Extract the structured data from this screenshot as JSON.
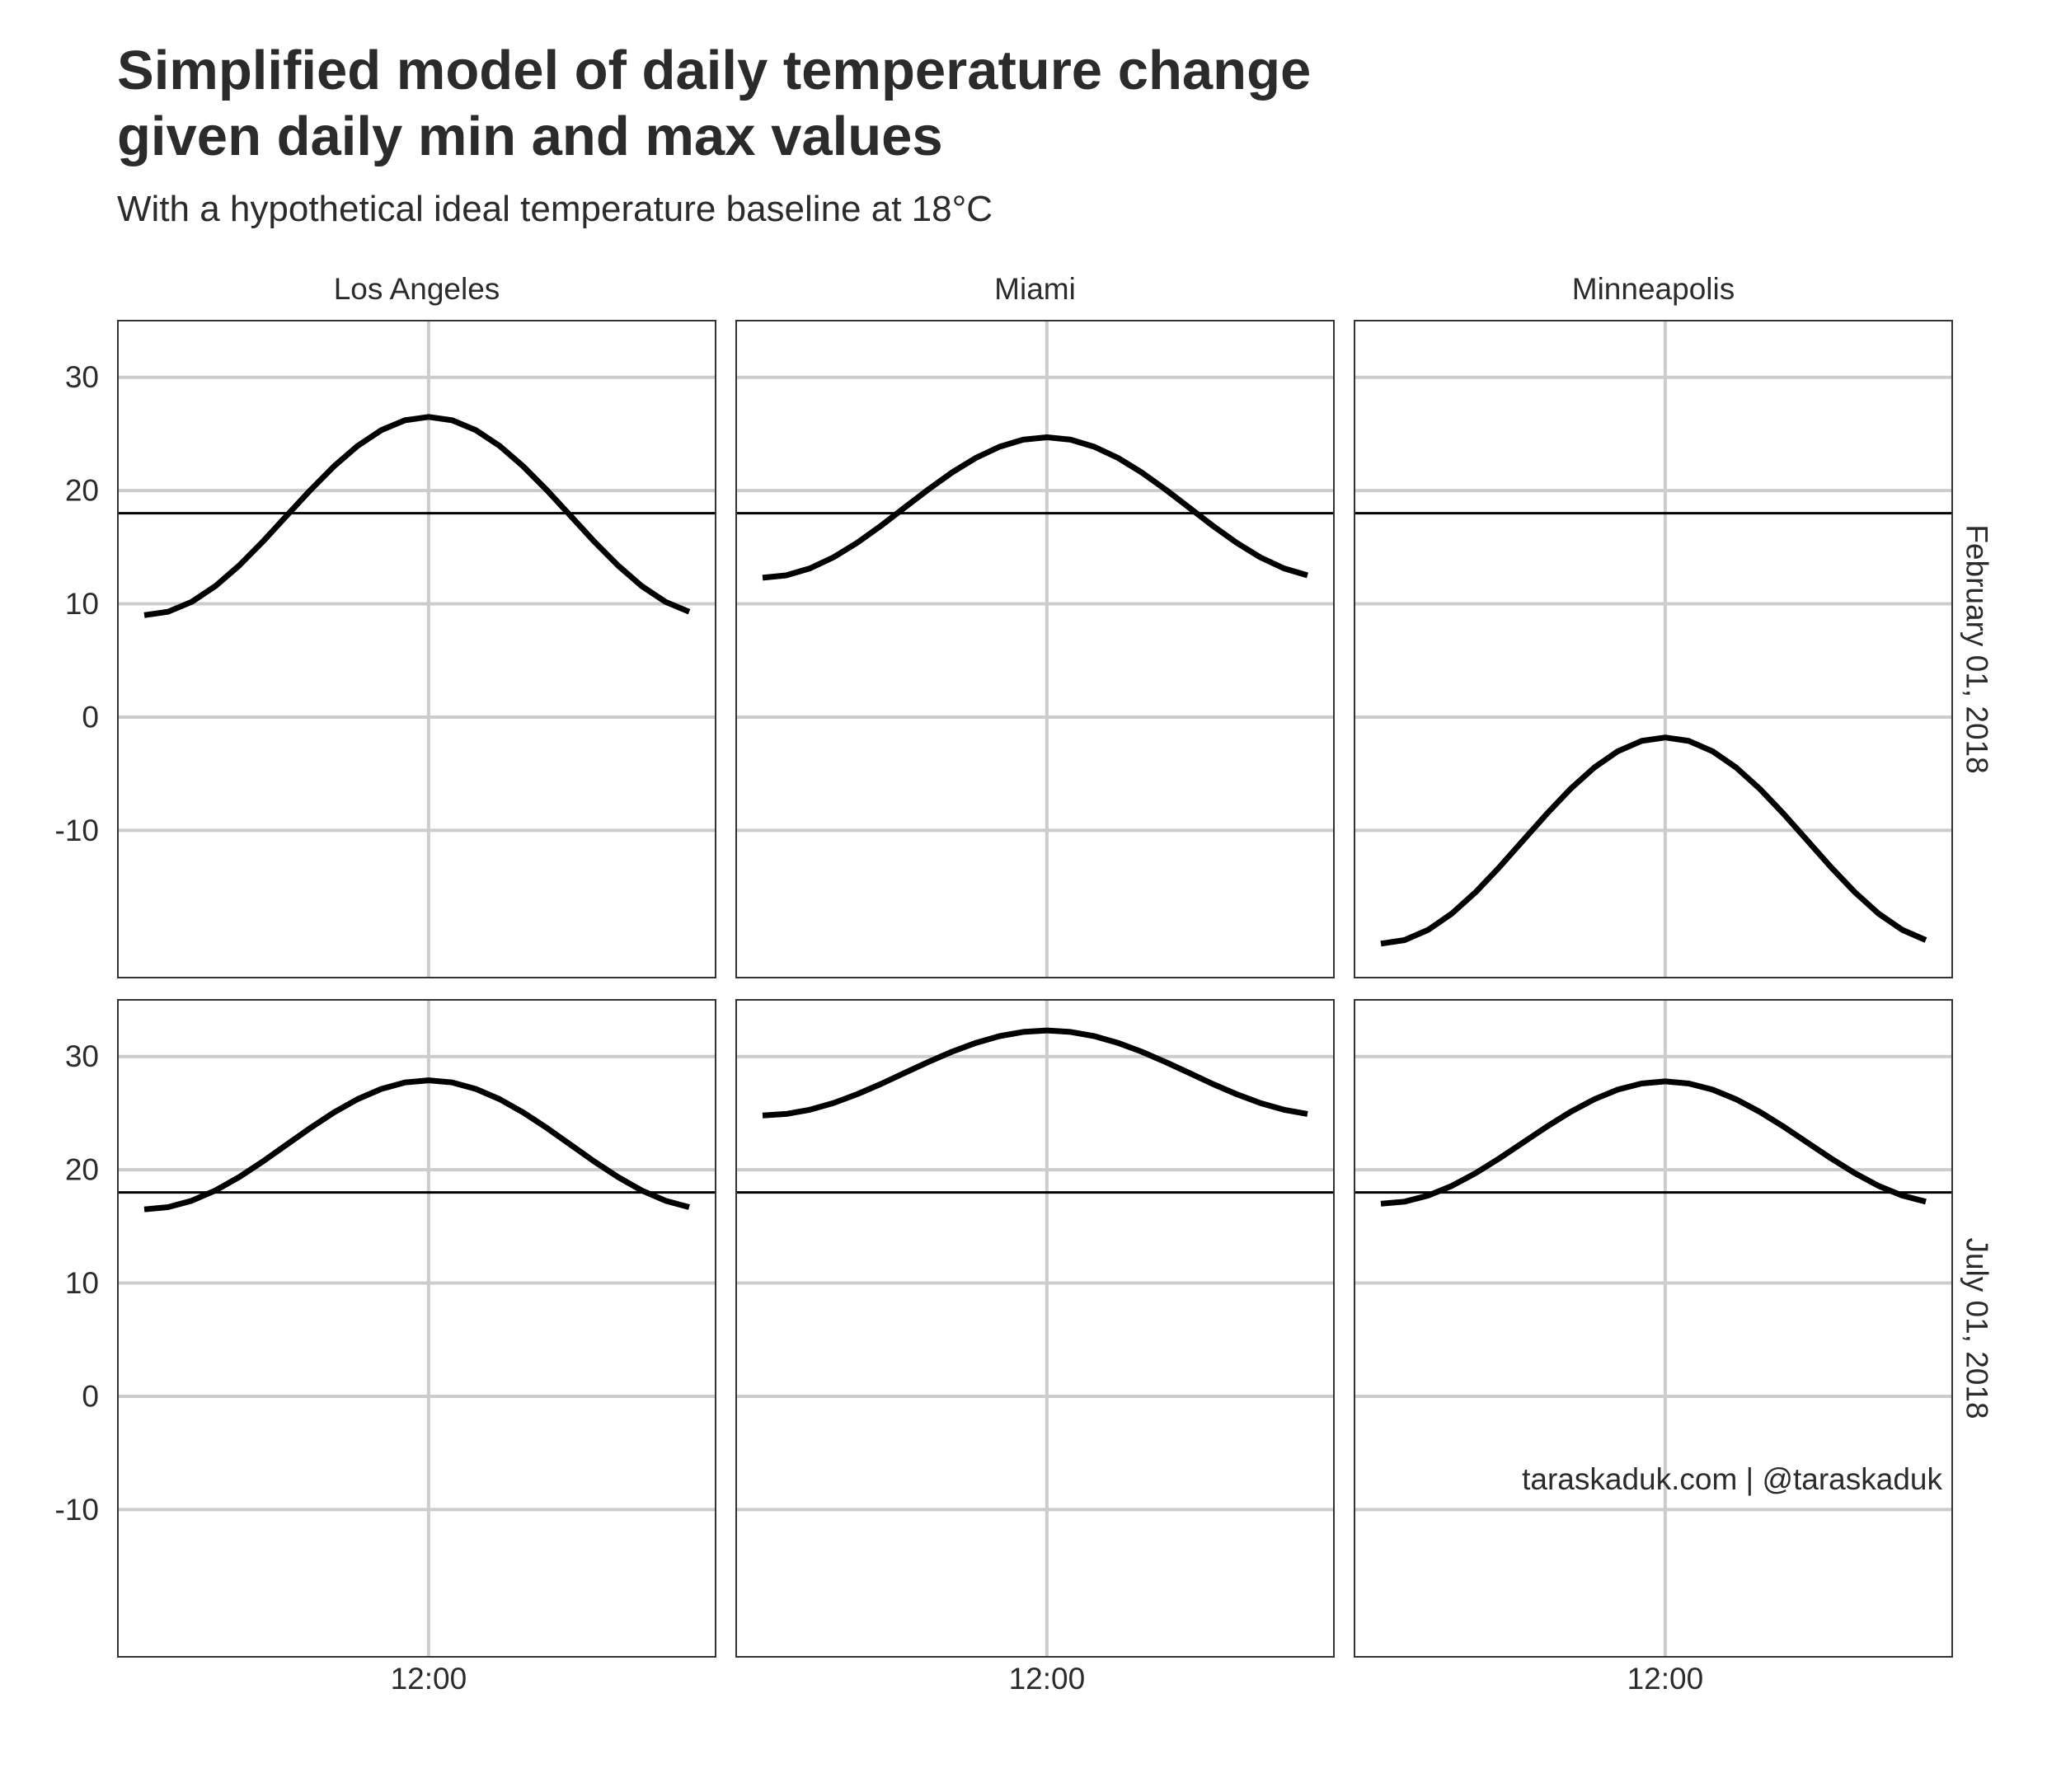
{
  "title_lines": [
    "Simplified model of daily temperature change",
    "given daily min and max values"
  ],
  "subtitle": "With a hypothetical ideal temperature baseline at 18°C",
  "credit": "taraskaduk.com | @taraskaduk",
  "chart_data": {
    "type": "line",
    "facet_columns": [
      "Los Angeles",
      "Miami",
      "Minneapolis"
    ],
    "facet_rows": [
      "February 01, 2018",
      "July 01, 2018"
    ],
    "x_tick_labels": [
      "12:00"
    ],
    "x_ticks_hours": [
      12
    ],
    "x_range_hours": [
      0,
      23
    ],
    "y_ticks": [
      -10,
      0,
      10,
      20,
      30
    ],
    "ylim": [
      -23,
      35
    ],
    "baseline": 18,
    "grid": true,
    "line_color": "#000000",
    "panels": [
      {
        "column": "Los Angeles",
        "row": "February 01, 2018",
        "min": 9,
        "max": 26.5
      },
      {
        "column": "Miami",
        "row": "February 01, 2018",
        "min": 12.3,
        "max": 24.7
      },
      {
        "column": "Minneapolis",
        "row": "February 01, 2018",
        "min": -20,
        "max": -1.8
      },
      {
        "column": "Los Angeles",
        "row": "July 01, 2018",
        "min": 16.5,
        "max": 27.9
      },
      {
        "column": "Miami",
        "row": "July 01, 2018",
        "min": 24.8,
        "max": 32.3
      },
      {
        "column": "Minneapolis",
        "row": "July 01, 2018",
        "min": 17,
        "max": 27.8
      }
    ]
  }
}
